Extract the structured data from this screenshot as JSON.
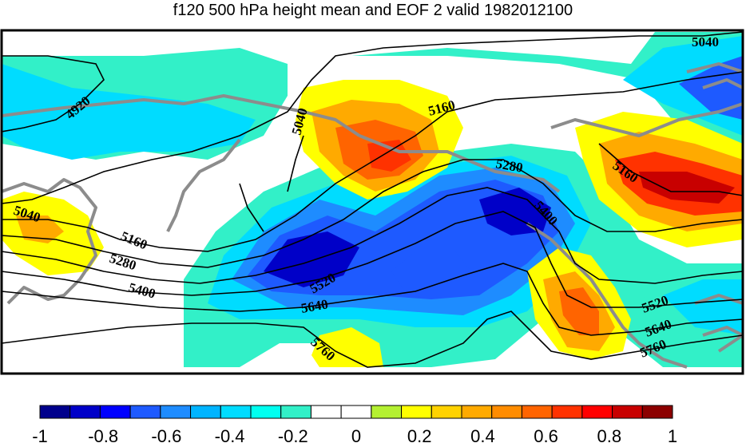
{
  "title": "f120 500 hPa height mean and EOF 2 valid 1982012100",
  "contour_labels": [
    "4920",
    "5040",
    "5040",
    "5040",
    "5160",
    "5160",
    "5160",
    "5280",
    "5280",
    "5400",
    "5400",
    "5520",
    "5520",
    "5640",
    "5640",
    "5760",
    "5760"
  ],
  "colorbar": {
    "tick_labels": [
      "-1",
      "-0.8",
      "-0.6",
      "-0.4",
      "-0.2",
      "0",
      "0.2",
      "0.4",
      "0.6",
      "0.8",
      "1"
    ],
    "colors": [
      "#00008c",
      "#0000c8",
      "#0000ff",
      "#1e5aff",
      "#1e8cff",
      "#00b4ff",
      "#00dcff",
      "#00fff0",
      "#32f0c8",
      "#ffffff",
      "#ffffff",
      "#b4f032",
      "#ffff00",
      "#ffd200",
      "#ffaa00",
      "#ff8c00",
      "#ff6400",
      "#ff3200",
      "#ff0000",
      "#c80000",
      "#8c0000"
    ]
  },
  "colors": {
    "coastline": "#8c8c8c",
    "contour": "#000000",
    "background": "#ffffff"
  }
}
